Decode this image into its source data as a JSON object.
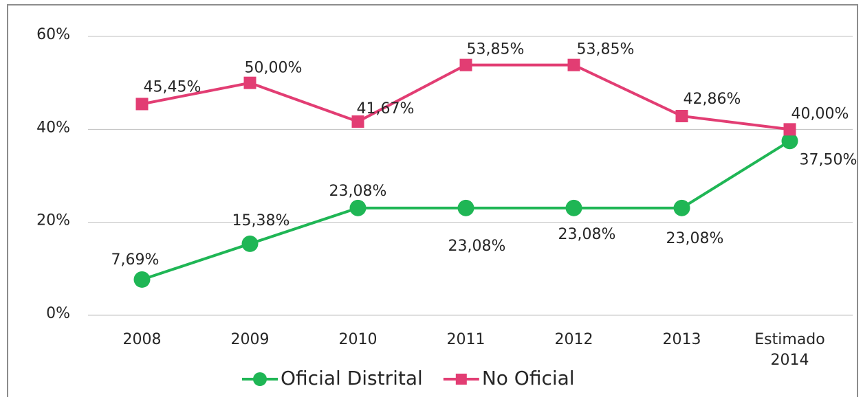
{
  "chart_data": {
    "type": "line",
    "categories": [
      "2008",
      "2009",
      "2010",
      "2011",
      "2012",
      "2013",
      "Estimado 2014"
    ],
    "series": [
      {
        "name": "Oficial Distrital",
        "color": "#1fb655",
        "marker": "circle",
        "values": [
          7.69,
          15.38,
          23.08,
          23.08,
          23.08,
          23.08,
          37.5
        ],
        "value_labels": [
          "7,69%",
          "15,38%",
          "23,08%",
          "23,08%",
          "23,08%",
          "23,08%",
          "37,50%"
        ]
      },
      {
        "name": "No Oficial",
        "color": "#e23d73",
        "marker": "square",
        "values": [
          45.45,
          50.0,
          41.67,
          53.85,
          53.85,
          42.86,
          40.0
        ],
        "value_labels": [
          "45,45%",
          "50,00%",
          "41,67%",
          "53,85%",
          "53,85%",
          "42,86%",
          "40,00%"
        ]
      }
    ],
    "ylim": [
      0,
      60
    ],
    "yticks": [
      {
        "value": 0,
        "label": "0%"
      },
      {
        "value": 20,
        "label": "20%"
      },
      {
        "value": 40,
        "label": "40%"
      },
      {
        "value": 60,
        "label": "60%"
      }
    ],
    "grid": true,
    "legend": "bottom"
  }
}
